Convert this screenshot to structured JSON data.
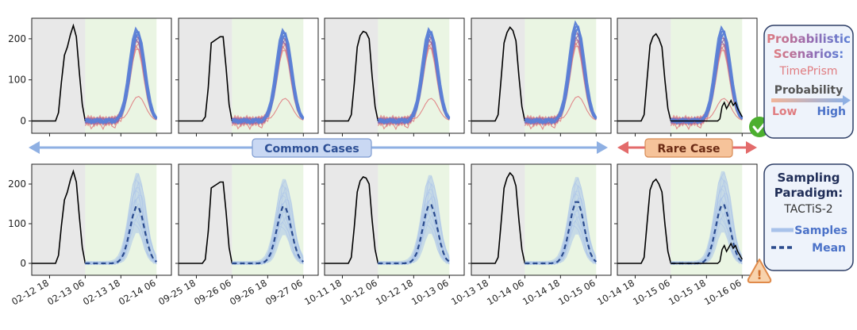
{
  "chart_data": {
    "type": "line",
    "y_ticks": [
      0,
      100,
      200
    ],
    "ylim": [
      -30,
      250
    ],
    "banners": {
      "common": "Common Cases",
      "rare": "Rare Case"
    },
    "legend_top": {
      "title_line1": "Probabilistic",
      "title_line2": "Scenarios:",
      "method": "TimePrism",
      "probability_label": "Probability",
      "low": "Low",
      "high": "High"
    },
    "legend_bottom": {
      "title_line1": "Sampling",
      "title_line2": "Paradigm:",
      "method": "TACTiS-2",
      "samples": "Samples",
      "mean": "Mean"
    },
    "columns": [
      {
        "x_ticks": [
          "02-12 18",
          "02-13 06",
          "02-13 18",
          "02-14 06"
        ],
        "history": [
          0,
          0,
          0,
          0,
          0,
          0,
          0,
          0,
          0,
          20,
          95,
          160,
          180,
          210,
          232,
          205,
          120,
          40,
          0
        ],
        "actual_future": [],
        "top_scenarios_peak": [
          225,
          220,
          215,
          212,
          208,
          204,
          200,
          196,
          190,
          183,
          178,
          60
        ],
        "samples_mean_peak": 145,
        "samples_band_peak": 225
      },
      {
        "x_ticks": [
          "09-25 18",
          "09-26 06",
          "09-26 18",
          "09-27 06"
        ],
        "history": [
          0,
          0,
          0,
          0,
          0,
          0,
          0,
          0,
          0,
          10,
          80,
          190,
          195,
          200,
          205,
          205,
          130,
          40,
          0
        ],
        "actual_future": [],
        "top_scenarios_peak": [
          222,
          218,
          212,
          208,
          204,
          200,
          196,
          192,
          188,
          182,
          175,
          55
        ],
        "samples_mean_peak": 145,
        "samples_band_peak": 210
      },
      {
        "x_ticks": [
          "10-11 18",
          "10-12 06",
          "10-12 18",
          "10-13 06"
        ],
        "history": [
          0,
          0,
          0,
          0,
          0,
          0,
          0,
          0,
          0,
          15,
          90,
          180,
          208,
          218,
          215,
          200,
          110,
          35,
          0
        ],
        "actual_future": [],
        "top_scenarios_peak": [
          224,
          220,
          216,
          212,
          208,
          204,
          200,
          196,
          190,
          186,
          180,
          55
        ],
        "samples_mean_peak": 150,
        "samples_band_peak": 220
      },
      {
        "x_ticks": [
          "10-13 18",
          "10-14 06",
          "10-14 18",
          "10-15 06"
        ],
        "history": [
          0,
          0,
          0,
          0,
          0,
          0,
          0,
          0,
          0,
          15,
          100,
          190,
          215,
          228,
          220,
          195,
          110,
          35,
          0
        ],
        "actual_future": [],
        "top_scenarios_peak": [
          240,
          234,
          228,
          222,
          216,
          210,
          205,
          200,
          195,
          190,
          185,
          60
        ],
        "samples_mean_peak": 158,
        "samples_band_peak": 215
      },
      {
        "x_ticks": [
          "10-14 18",
          "10-15 06",
          "10-15 18",
          "10-16 06"
        ],
        "history": [
          0,
          0,
          0,
          0,
          0,
          0,
          0,
          0,
          0,
          15,
          100,
          185,
          205,
          212,
          200,
          180,
          100,
          30,
          0
        ],
        "actual_future": [
          0,
          0,
          0,
          0,
          0,
          0,
          0,
          0,
          0,
          0,
          0,
          0,
          0,
          0,
          0,
          0,
          0,
          0,
          0,
          0,
          0,
          0,
          5,
          35,
          45,
          30,
          40,
          50,
          38,
          45,
          30,
          20,
          10
        ],
        "top_scenarios_peak": [
          228,
          222,
          216,
          210,
          205,
          200,
          195,
          190,
          185,
          180,
          175,
          55
        ],
        "samples_mean_peak": 150,
        "samples_band_peak": 230
      }
    ],
    "colors": {
      "history_bg": "#e8e8e8",
      "forecast_bg": "#eaf5e3",
      "actual": "#000000",
      "low_prob": "#e07c80",
      "high_prob": "#5b7fd6",
      "mid_prob": "#8a62a8",
      "samples": "#a8c2ea",
      "mean": "#2a4b8d",
      "common_banner": "#c9d8f3",
      "common_arrow": "#8fb0e3",
      "rare_banner": "#f6c39a",
      "rare_arrow": "#e36b6b",
      "check": "#4caf2f",
      "warn": "#f3b27a"
    }
  }
}
